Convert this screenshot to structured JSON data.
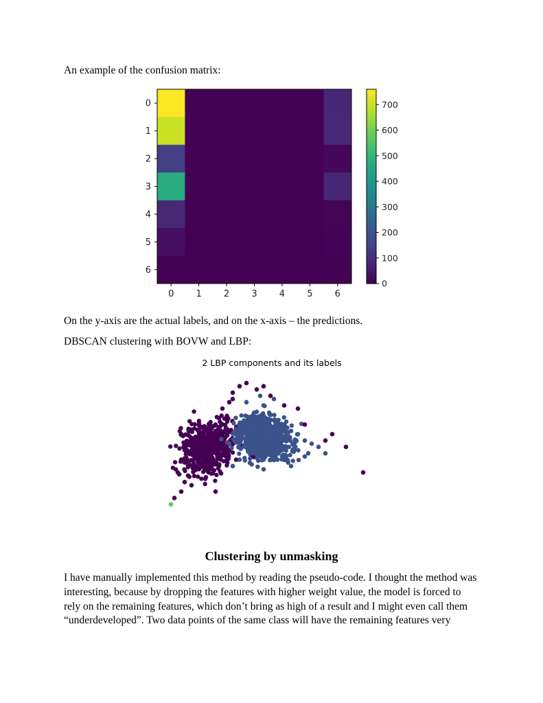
{
  "document": {
    "intro_text": "An example of the confusion matrix:",
    "axis_note": "On the y-axis are the actual labels, and on the x-axis – the predictions.",
    "dbscan_note": "DBSCAN clustering with BOVW and LBP:",
    "section_heading": "Clustering by unmasking",
    "paragraph_lines": [
      "I have manually implemented this method by reading the pseudo-code. I thought the method was",
      "interesting, because by dropping the features with higher weight value, the model is forced to",
      "rely on the remaining features, which don’t bring as high of a result and I might even call them",
      "“underdeveloped”. Two data points of the same class will have the remaining features very"
    ]
  },
  "chart_data": [
    {
      "type": "heatmap",
      "title": "",
      "xlabel": "",
      "ylabel": "",
      "x_categories": [
        "0",
        "1",
        "2",
        "3",
        "4",
        "5",
        "6"
      ],
      "y_categories": [
        "0",
        "1",
        "2",
        "3",
        "4",
        "5",
        "6"
      ],
      "values": [
        [
          760,
          0,
          0,
          0,
          0,
          0,
          80
        ],
        [
          700,
          0,
          0,
          0,
          0,
          0,
          85
        ],
        [
          140,
          0,
          0,
          0,
          0,
          0,
          15
        ],
        [
          470,
          0,
          0,
          0,
          0,
          0,
          80
        ],
        [
          85,
          0,
          0,
          0,
          0,
          0,
          8
        ],
        [
          30,
          0,
          0,
          0,
          0,
          0,
          5
        ],
        [
          0,
          0,
          0,
          0,
          0,
          0,
          2
        ]
      ],
      "colormap": "viridis",
      "colorbar_range": [
        0,
        760
      ],
      "colorbar_ticks": [
        0,
        100,
        200,
        300,
        400,
        500,
        600,
        700
      ]
    },
    {
      "type": "scatter",
      "title": "2 LBP components and its labels",
      "xlabel": "",
      "ylabel": "",
      "axes_visible": false,
      "colors": {
        "noise": "#440154",
        "cluster_0": "#3b528b",
        "cluster_1": "#5ec962"
      },
      "series": [
        {
          "label_color": "#440154",
          "x": [
            -2.2,
            -2.0,
            -1.9,
            -1.8,
            -1.6,
            -1.5,
            -1.4,
            -1.3,
            -1.2,
            -1.1,
            -1.0,
            -0.9,
            -0.8,
            -0.6,
            -0.5,
            -0.3,
            -0.1,
            0.2,
            0.6,
            1.0,
            1.6,
            2.2,
            2.8,
            3.3,
            -2.1,
            -1.7,
            -1.3,
            -0.9,
            -0.4,
            0.1,
            -1.0,
            -0.5,
            -1.6,
            -2.0,
            -1.2,
            0.4,
            1.4,
            2.4,
            -0.7,
            -1.9
          ],
          "y": [
            -1.4,
            -1.2,
            -0.9,
            -0.7,
            -0.5,
            -0.3,
            0.0,
            0.2,
            0.4,
            0.6,
            0.9,
            1.1,
            1.4,
            1.6,
            1.9,
            2.1,
            2.2,
            2.0,
            1.8,
            1.5,
            0.9,
            0.4,
            0.2,
            -0.6,
            -0.6,
            -1.0,
            -0.8,
            -0.4,
            -0.2,
            -0.1,
            -1.2,
            1.7,
            0.3,
            -0.2,
            -0.6,
            2.1,
            1.4,
            0.6,
            0.8,
            0.1
          ]
        },
        {
          "label_color": "#3b528b",
          "x": [
            -0.6,
            -0.4,
            -0.2,
            0.0,
            0.2,
            0.4,
            0.6,
            0.8,
            1.0,
            1.2,
            1.4,
            1.6,
            1.8,
            2.0,
            -0.3,
            0.1,
            0.5,
            0.9,
            1.3,
            1.7,
            -0.5,
            0.0,
            0.4,
            0.8,
            1.2,
            1.6,
            2.2,
            -0.1,
            0.3,
            0.7
          ],
          "y": [
            0.3,
            0.6,
            0.9,
            1.1,
            1.3,
            1.5,
            1.2,
            1.0,
            0.9,
            0.7,
            0.6,
            0.4,
            0.3,
            0.2,
            -0.2,
            0.0,
            0.2,
            0.3,
            0.1,
            0.0,
            -0.4,
            -0.3,
            -0.5,
            -0.2,
            -0.4,
            -0.1,
            0.0,
            1.6,
            1.8,
            1.7
          ]
        },
        {
          "label_color": "#5ec962",
          "x": [
            -2.3
          ],
          "y": [
            -1.6
          ]
        }
      ]
    }
  ]
}
